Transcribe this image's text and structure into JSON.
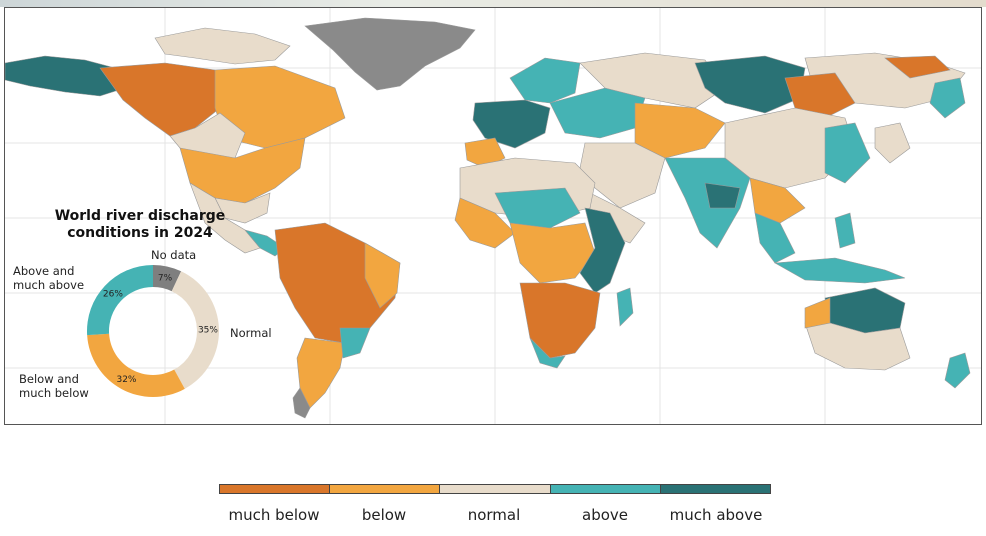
{
  "map": {
    "title_line1": "World river discharge",
    "title_line2": "conditions in 2024"
  },
  "donut": {
    "segments": [
      {
        "key": "no_data",
        "label": "No data",
        "percent": 7,
        "percent_text": "7%",
        "color": "#7f7f7f"
      },
      {
        "key": "normal",
        "label": "Normal",
        "percent": 35,
        "percent_text": "35%",
        "color": "#e8dccb"
      },
      {
        "key": "below",
        "label_line1": "Below and",
        "label_line2": "much below",
        "percent": 32,
        "percent_text": "32%",
        "color": "#f2a640"
      },
      {
        "key": "above",
        "label_line1": "Above and",
        "label_line2": "much above",
        "percent": 26,
        "percent_text": "26%",
        "color": "#45b3b4"
      }
    ]
  },
  "legend": {
    "items": [
      {
        "label": "much below",
        "color": "#d9762a"
      },
      {
        "label": "below",
        "color": "#f2a640"
      },
      {
        "label": "normal",
        "color": "#e8dccb"
      },
      {
        "label": "above",
        "color": "#45b3b4"
      },
      {
        "label": "much above",
        "color": "#2a7275"
      }
    ]
  },
  "colors": {
    "ocean": "#ffffff",
    "land_no_data": "#8a8a8a",
    "grid": "#e2e2e2"
  }
}
